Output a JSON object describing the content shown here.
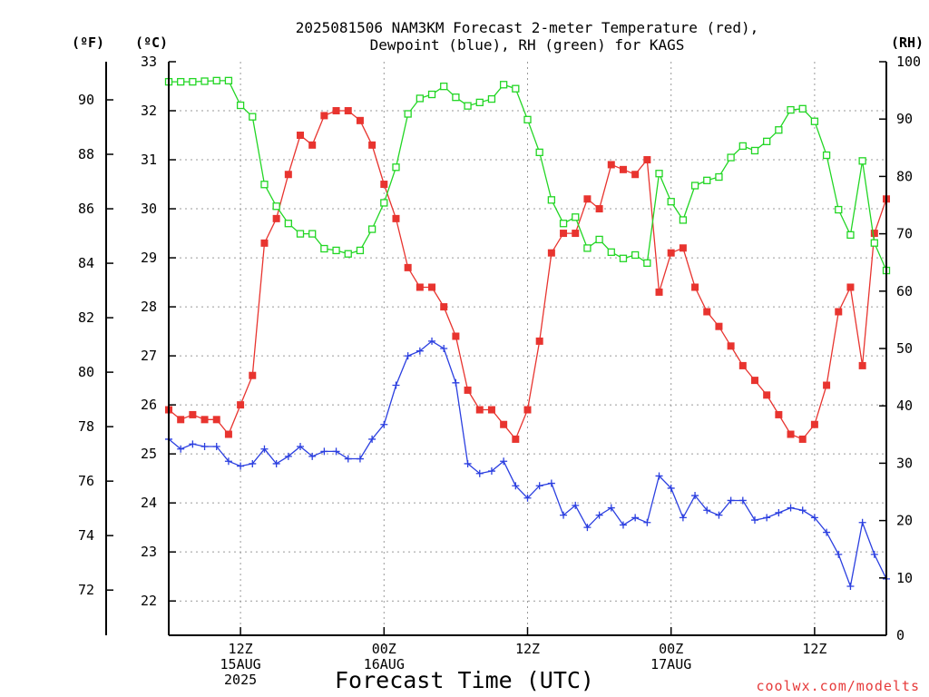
{
  "chart_data": {
    "type": "line",
    "title_lines": [
      "2025081506 NAM3KM Forecast 2-meter Temperature (red),",
      "Dewpoint (blue), RH (green) for KAGS"
    ],
    "xlabel": "Forecast Time (UTC)",
    "credit": "coolwx.com/modelts",
    "units": {
      "fahrenheit": "(ºF)",
      "celsius": "(ºC)",
      "rh": "(RH)"
    },
    "x_unit": "forecast hour from 2025-08-15 06Z",
    "xlim": [
      0,
      60
    ],
    "x_ticks": [
      {
        "hour": 6,
        "lines": [
          "12Z",
          "15AUG",
          "2025"
        ]
      },
      {
        "hour": 18,
        "lines": [
          "00Z",
          "16AUG"
        ]
      },
      {
        "hour": 30,
        "lines": [
          "12Z"
        ]
      },
      {
        "hour": 42,
        "lines": [
          "00Z",
          "17AUG"
        ]
      },
      {
        "hour": 54,
        "lines": [
          "12Z"
        ]
      }
    ],
    "celsius_axis": {
      "ylim": [
        21.3,
        33
      ],
      "ticks": [
        22,
        23,
        24,
        25,
        26,
        27,
        28,
        29,
        30,
        31,
        32,
        33
      ]
    },
    "fahrenheit_ticks": [
      72,
      74,
      76,
      78,
      80,
      82,
      84,
      86,
      88,
      90
    ],
    "rh_axis": {
      "ylim": [
        0,
        100
      ],
      "ticks": [
        0,
        10,
        20,
        30,
        40,
        50,
        60,
        70,
        80,
        90,
        100
      ]
    },
    "series": [
      {
        "name": "Temperature",
        "color": "#e8342f",
        "marker": "filled-square",
        "axis": "celsius",
        "values": [
          25.9,
          25.7,
          25.8,
          25.7,
          25.7,
          25.4,
          26.0,
          26.6,
          29.3,
          29.8,
          30.7,
          31.5,
          31.3,
          31.9,
          32.0,
          32.0,
          31.8,
          31.3,
          30.5,
          29.8,
          28.8,
          28.4,
          28.4,
          28.0,
          27.4,
          26.3,
          25.9,
          25.9,
          25.6,
          25.3,
          25.9,
          27.3,
          29.1,
          29.5,
          29.5,
          30.2,
          30.0,
          30.9,
          30.8,
          30.7,
          31.0,
          28.3,
          29.1,
          29.2,
          28.4,
          27.9,
          27.6,
          27.2,
          26.8,
          26.5,
          26.2,
          25.8,
          25.4,
          25.3,
          25.6,
          26.4,
          27.9,
          28.4,
          26.8,
          29.5,
          30.2
        ]
      },
      {
        "name": "Dewpoint",
        "color": "#2b3fe0",
        "marker": "plus",
        "axis": "celsius",
        "values": [
          25.3,
          25.1,
          25.2,
          25.15,
          25.15,
          24.85,
          24.75,
          24.8,
          25.1,
          24.8,
          24.95,
          25.15,
          24.95,
          25.05,
          25.05,
          24.9,
          24.9,
          25.3,
          25.6,
          26.4,
          27.0,
          27.1,
          27.3,
          27.15,
          26.45,
          24.8,
          24.6,
          24.65,
          24.85,
          24.35,
          24.1,
          24.35,
          24.4,
          23.75,
          23.95,
          23.5,
          23.75,
          23.9,
          23.55,
          23.7,
          23.6,
          24.55,
          24.3,
          23.7,
          24.15,
          23.85,
          23.75,
          24.05,
          24.05,
          23.65,
          23.7,
          23.8,
          23.9,
          23.85,
          23.7,
          23.4,
          22.95,
          22.3,
          23.6,
          22.95,
          22.45
        ]
      },
      {
        "name": "RH",
        "color": "#22d624",
        "marker": "open-square",
        "axis": "rh",
        "values": [
          96.5,
          96.5,
          96.5,
          96.6,
          96.7,
          96.7,
          92.4,
          90.4,
          78.6,
          74.8,
          71.8,
          70.0,
          70.0,
          67.4,
          67.1,
          66.5,
          67.1,
          70.8,
          75.4,
          81.6,
          90.9,
          93.6,
          94.3,
          95.7,
          93.8,
          92.3,
          92.9,
          93.5,
          96.0,
          95.3,
          89.9,
          84.2,
          75.9,
          71.8,
          72.9,
          67.5,
          69.0,
          66.8,
          65.7,
          66.3,
          64.9,
          80.5,
          75.6,
          72.4,
          78.4,
          79.3,
          79.9,
          83.3,
          85.3,
          84.5,
          86.1,
          88.1,
          91.6,
          91.8,
          89.6,
          83.7,
          74.2,
          69.8,
          82.7,
          68.4,
          63.6
        ]
      }
    ]
  }
}
